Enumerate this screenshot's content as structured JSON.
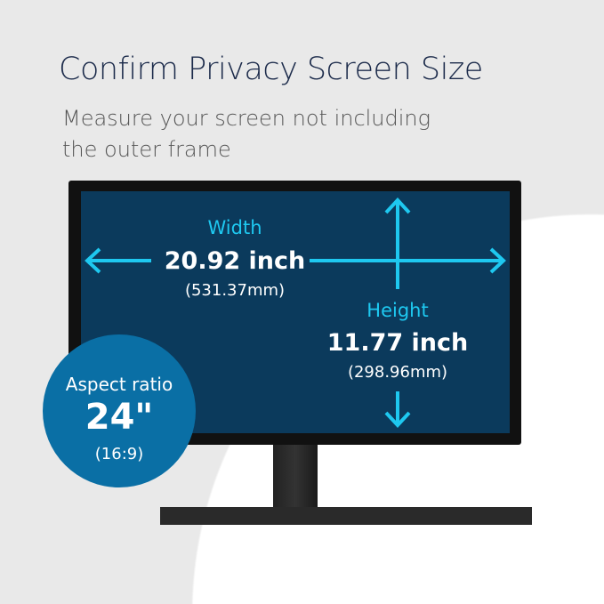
{
  "title": "Confirm Privacy Screen Size",
  "subtitle_line1": "Measure your screen not including",
  "subtitle_line2": "the outer frame",
  "width": {
    "label": "Width",
    "inch": "20.92 inch",
    "mm": "(531.37mm)"
  },
  "height": {
    "label": "Height",
    "inch": "11.77 inch",
    "mm": "(298.96mm)"
  },
  "badge": {
    "label": "Aspect ratio",
    "size": "24\"",
    "ratio": "(16:9)"
  },
  "colors": {
    "accent": "#1ec8f0",
    "screen": "#0b3a5c",
    "badge": "#0a6fa5",
    "title": "#1b2a4a"
  }
}
